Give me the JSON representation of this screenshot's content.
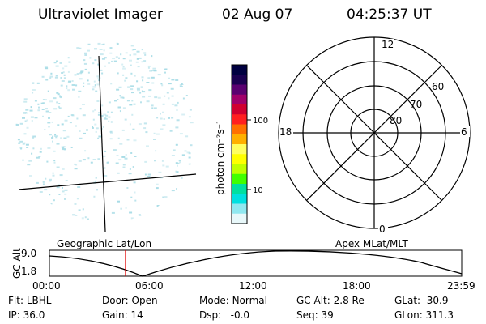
{
  "header": {
    "instrument": "Ultraviolet Imager",
    "date": "02 Aug 07",
    "time": "04:25:37 UT"
  },
  "colorbar": {
    "unit_label": "photon cm⁻²s⁻¹",
    "ticks": [
      {
        "label": "100",
        "value": 100
      },
      {
        "label": "10",
        "value": 10
      }
    ],
    "colors": [
      "#000040",
      "#1a0050",
      "#5a0070",
      "#a0006a",
      "#d00030",
      "#ff2020",
      "#ff7000",
      "#ffb000",
      "#ffff60",
      "#ffff00",
      "#c0ff00",
      "#40ff00",
      "#00e0a0",
      "#00e0e0",
      "#90e8f0",
      "#e8f8fa"
    ]
  },
  "polar_plot": {
    "clock_labels": {
      "top": "12",
      "right": "6",
      "bottom": "0",
      "left": "18"
    },
    "lat_labels": [
      "60",
      "70",
      "80"
    ]
  },
  "altitude_plot": {
    "ylabel": "GC Alt",
    "yticks": [
      "9.0",
      "1.8"
    ],
    "left_title": "Geographic Lat/Lon",
    "right_title": "Apex MLat/MLT",
    "xticks": [
      "00:00",
      "06:00",
      "12:00",
      "18:00",
      "23:59"
    ],
    "marker_time_hours": 4.43
  },
  "status": {
    "flt_label": "Flt:",
    "flt_value": "LBHL",
    "ip_label": "IP:",
    "ip_value": "36.0",
    "door_label": "Door:",
    "door_value": "Open",
    "gain_label": "Gain:",
    "gain_value": "14",
    "mode_label": "Mode:",
    "mode_value": "Normal",
    "dsp_label": "Dsp:",
    "dsp_value": "-0.0",
    "gcalt_label": "GC Alt:",
    "gcalt_value": "2.8 Re",
    "seq_label": "Seq:",
    "seq_value": "39",
    "glat_label": "GLat:",
    "glat_value": "30.9",
    "glon_label": "GLon:",
    "glon_value": "311.3"
  },
  "colors": {
    "speckle": "#a8dce6",
    "marker": "#e00000"
  }
}
